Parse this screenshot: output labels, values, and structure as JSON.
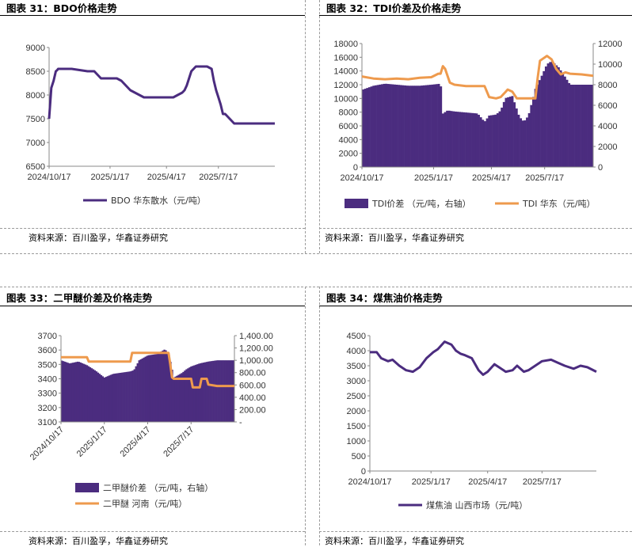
{
  "panels": [
    {
      "title": "图表 31：BDO价格走势",
      "source": "资料来源：百川盈孚，华鑫证券研究"
    },
    {
      "title": "图表 32：TDI价差及价格走势",
      "source": "资料来源：百川盈孚，华鑫证券研究"
    },
    {
      "title": "图表 33：二甲醚价差及价格走势",
      "source": "资料来源：百川盈孚，华鑫证券研究"
    },
    {
      "title": "图表 34：煤焦油价格走势",
      "source": "资料来源：百川盈孚，华鑫证券研究"
    }
  ],
  "colors": {
    "purple": "#4b2c7f",
    "orange": "#ee9a4d"
  },
  "chart_data": [
    {
      "type": "line",
      "ylim": [
        6500,
        9000
      ],
      "yticks": [
        "9000",
        "8500",
        "8000",
        "7500",
        "7000",
        "6500"
      ],
      "xticks": [
        "2024/10/17",
        "2025/1/17",
        "2025/4/17",
        "2025/7/17"
      ],
      "series": [
        {
          "name": "BDO 华东散水（元/吨）",
          "x": [
            0,
            0.01,
            0.02,
            0.03,
            0.035,
            0.04,
            0.05,
            0.1,
            0.17,
            0.2,
            0.23,
            0.3,
            0.32,
            0.36,
            0.38,
            0.42,
            0.5,
            0.55,
            0.57,
            0.59,
            0.6,
            0.61,
            0.62,
            0.63,
            0.65,
            0.67,
            0.7,
            0.72,
            0.73,
            0.74,
            0.75,
            0.76,
            0.77,
            0.78,
            0.8,
            0.82,
            0.84,
            1.0
          ],
          "y": [
            7500,
            8150,
            8300,
            8500,
            8520,
            8550,
            8550,
            8550,
            8500,
            8500,
            8350,
            8350,
            8300,
            8100,
            8050,
            7950,
            7950,
            7950,
            8000,
            8050,
            8100,
            8200,
            8350,
            8500,
            8600,
            8600,
            8600,
            8550,
            8300,
            8100,
            7950,
            7800,
            7600,
            7600,
            7500,
            7400,
            7400,
            7400
          ]
        }
      ]
    },
    {
      "type": "bar+line",
      "ylim": [
        0,
        18000
      ],
      "yticks": [
        "18000",
        "16000",
        "14000",
        "12000",
        "10000",
        "8000",
        "6000",
        "4000",
        "2000",
        "0"
      ],
      "y2lim": [
        0,
        12000
      ],
      "y2ticks": [
        "12000",
        "10000",
        "8000",
        "6000",
        "4000",
        "2000",
        "0"
      ],
      "xticks": [
        "2024/10/17",
        "2025/1/17",
        "2025/4/17",
        "2025/7/17"
      ],
      "series": [
        {
          "name": "TDI价差 （元/吨，右轴）",
          "kind": "bar",
          "x": [
            0,
            0.05,
            0.1,
            0.15,
            0.2,
            0.25,
            0.3,
            0.34,
            0.35,
            0.37,
            0.4,
            0.45,
            0.5,
            0.53,
            0.55,
            0.58,
            0.6,
            0.62,
            0.65,
            0.68,
            0.7,
            0.72,
            0.75,
            0.78,
            0.8,
            0.82,
            0.85,
            0.88,
            0.9,
            0.95,
            1.0
          ],
          "y": [
            7500,
            7900,
            8100,
            8000,
            7900,
            7900,
            8000,
            8100,
            5200,
            5500,
            5400,
            5300,
            5200,
            4400,
            5000,
            5100,
            5500,
            6700,
            6900,
            4900,
            4400,
            5000,
            7600,
            9000,
            10000,
            10300,
            9700,
            8700,
            8000,
            8000,
            8000
          ]
        },
        {
          "name": "TDI 华东（元/吨）",
          "kind": "line",
          "x": [
            0,
            0.05,
            0.1,
            0.15,
            0.2,
            0.25,
            0.3,
            0.33,
            0.34,
            0.35,
            0.36,
            0.38,
            0.4,
            0.45,
            0.5,
            0.53,
            0.55,
            0.58,
            0.6,
            0.62,
            0.63,
            0.65,
            0.67,
            0.7,
            0.75,
            0.76,
            0.77,
            0.8,
            0.82,
            0.84,
            0.86,
            0.88,
            0.9,
            0.95,
            1.0
          ],
          "y": [
            13200,
            12900,
            12800,
            12900,
            12800,
            13000,
            13100,
            13600,
            13600,
            14700,
            14300,
            12300,
            12000,
            11800,
            11800,
            11800,
            10200,
            10000,
            10200,
            10900,
            11300,
            11000,
            10000,
            10000,
            10000,
            13000,
            15500,
            16200,
            15700,
            14300,
            13500,
            13800,
            13600,
            13500,
            13300
          ]
        }
      ]
    },
    {
      "type": "bar+line",
      "ylim": [
        3100,
        3700
      ],
      "yticks": [
        "3700",
        "3600",
        "3500",
        "3400",
        "3300",
        "3200",
        "3100"
      ],
      "y2lim": [
        0,
        1400
      ],
      "y2ticks": [
        "1,400.00",
        "1,200.00",
        "1,000.00",
        "800.00",
        "600.00",
        "400.00",
        "200.00",
        "-"
      ],
      "xticks": [
        "2024/10/17",
        "2025/1/17",
        "2025/4/17",
        "2025/7/17"
      ],
      "series": [
        {
          "name": "二甲醚价差 （元/吨，右轴）",
          "kind": "bar",
          "x": [
            0,
            0.05,
            0.1,
            0.15,
            0.2,
            0.25,
            0.3,
            0.35,
            0.4,
            0.42,
            0.45,
            0.5,
            0.55,
            0.6,
            0.62,
            0.63,
            0.65,
            0.7,
            0.72,
            0.75,
            0.8,
            0.85,
            0.9,
            0.95,
            1.0
          ],
          "y": [
            1000,
            950,
            980,
            920,
            830,
            720,
            780,
            800,
            820,
            840,
            1000,
            1080,
            1100,
            1180,
            1100,
            1000,
            720,
            800,
            850,
            900,
            950,
            980,
            1000,
            1000,
            1000
          ]
        },
        {
          "name": "二甲醚 河南（元/吨）",
          "kind": "line",
          "x": [
            0,
            0.05,
            0.1,
            0.15,
            0.16,
            0.3,
            0.38,
            0.4,
            0.41,
            0.6,
            0.62,
            0.63,
            0.64,
            0.65,
            0.75,
            0.76,
            0.8,
            0.81,
            0.84,
            0.85,
            0.9,
            1.0
          ],
          "y": [
            3550,
            3550,
            3550,
            3550,
            3520,
            3520,
            3520,
            3520,
            3580,
            3580,
            3580,
            3500,
            3410,
            3400,
            3400,
            3340,
            3340,
            3400,
            3400,
            3360,
            3350,
            3350
          ]
        }
      ]
    },
    {
      "type": "line",
      "ylim": [
        0,
        4500
      ],
      "yticks": [
        "4500",
        "4000",
        "3500",
        "3000",
        "2500",
        "2000",
        "1500",
        "1000",
        "500",
        "0"
      ],
      "xticks": [
        "2024/10/17",
        "2025/1/17",
        "2025/4/17",
        "2025/7/17"
      ],
      "series": [
        {
          "name": "煤焦油 山西市场（元/吨）",
          "x": [
            0,
            0.03,
            0.05,
            0.08,
            0.1,
            0.13,
            0.16,
            0.19,
            0.22,
            0.25,
            0.28,
            0.3,
            0.33,
            0.36,
            0.38,
            0.4,
            0.42,
            0.45,
            0.48,
            0.5,
            0.52,
            0.55,
            0.57,
            0.6,
            0.63,
            0.65,
            0.68,
            0.7,
            0.73,
            0.76,
            0.8,
            0.83,
            0.86,
            0.9,
            0.93,
            0.96,
            1.0
          ],
          "y": [
            3950,
            3950,
            3750,
            3650,
            3700,
            3500,
            3350,
            3300,
            3450,
            3750,
            3950,
            4050,
            4300,
            4200,
            4000,
            3900,
            3850,
            3750,
            3350,
            3200,
            3300,
            3550,
            3450,
            3300,
            3350,
            3500,
            3300,
            3350,
            3500,
            3650,
            3700,
            3600,
            3500,
            3400,
            3500,
            3450,
            3300
          ]
        }
      ]
    }
  ]
}
